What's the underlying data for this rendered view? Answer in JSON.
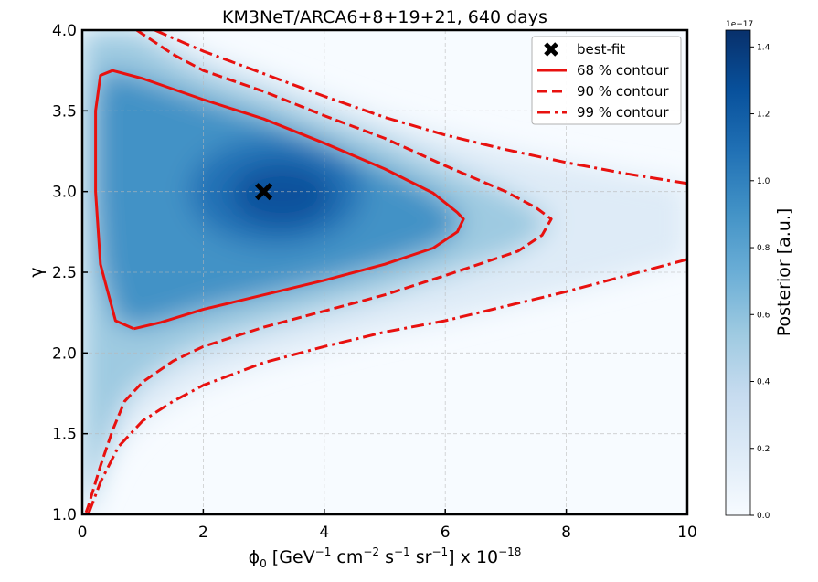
{
  "chart_data": {
    "type": "heatmap",
    "title": "KM3NeT/ARCA6+8+19+21, 640 days",
    "xlabel": {
      "main": "ϕ",
      "sub": "0",
      "body": " [GeV",
      "e1": "−1",
      "t1": " cm",
      "e2": "−2",
      "t2": " s",
      "e3": "−1",
      "t3": " sr",
      "e4": "−1",
      "t4": "] x 10",
      "e5": "−18"
    },
    "ylabel": "γ",
    "xlim": [
      0,
      10
    ],
    "ylim": [
      1.0,
      4.0
    ],
    "xticks": [
      "0",
      "2",
      "4",
      "6",
      "8",
      "10"
    ],
    "yticks": [
      "1.0",
      "1.5",
      "2.0",
      "2.5",
      "3.0",
      "3.5",
      "4.0"
    ],
    "grid": true,
    "best_fit": {
      "x": 3.0,
      "y": 3.0,
      "label": "best-fit"
    },
    "colorbar": {
      "label": "Posterior [a.u.]",
      "scale_label": "1e−17",
      "ticks": [
        "0.0",
        "0.2",
        "0.4",
        "0.6",
        "0.8",
        "1.0",
        "1.2",
        "1.4"
      ],
      "min": 0.0,
      "max": 1.45,
      "colormap": [
        "#f7fbff",
        "#deebf7",
        "#c6dbef",
        "#9ecae1",
        "#6baed6",
        "#4292c6",
        "#2171b5",
        "#08519c",
        "#08306b"
      ]
    },
    "contour_color": "#e8110f",
    "contours": [
      {
        "name": "68 % contour",
        "style": "solid",
        "points": [
          [
            0.85,
            2.15
          ],
          [
            0.55,
            2.2
          ],
          [
            0.3,
            2.55
          ],
          [
            0.22,
            3.0
          ],
          [
            0.22,
            3.5
          ],
          [
            0.3,
            3.72
          ],
          [
            0.5,
            3.75
          ],
          [
            1.0,
            3.7
          ],
          [
            2.0,
            3.57
          ],
          [
            3.0,
            3.45
          ],
          [
            4.0,
            3.3
          ],
          [
            5.0,
            3.14
          ],
          [
            5.8,
            2.99
          ],
          [
            6.2,
            2.87
          ],
          [
            6.3,
            2.83
          ],
          [
            6.2,
            2.75
          ],
          [
            5.8,
            2.65
          ],
          [
            5.0,
            2.55
          ],
          [
            4.0,
            2.45
          ],
          [
            3.0,
            2.36
          ],
          [
            2.0,
            2.27
          ],
          [
            1.3,
            2.19
          ],
          [
            0.85,
            2.15
          ]
        ]
      },
      {
        "name": "90 % contour",
        "style": "dashed",
        "groups": [
          [
            [
              0.9,
              4.0
            ],
            [
              1.5,
              3.85
            ],
            [
              2.0,
              3.75
            ],
            [
              3.0,
              3.62
            ],
            [
              4.0,
              3.47
            ],
            [
              5.0,
              3.33
            ],
            [
              6.0,
              3.16
            ],
            [
              7.0,
              3.0
            ],
            [
              7.5,
              2.9
            ],
            [
              7.75,
              2.83
            ],
            [
              7.6,
              2.73
            ],
            [
              7.2,
              2.63
            ],
            [
              6.0,
              2.48
            ],
            [
              5.0,
              2.36
            ],
            [
              4.0,
              2.26
            ],
            [
              3.0,
              2.16
            ],
            [
              2.0,
              2.04
            ],
            [
              1.5,
              1.95
            ],
            [
              1.0,
              1.82
            ],
            [
              0.7,
              1.7
            ],
            [
              0.5,
              1.52
            ],
            [
              0.3,
              1.3
            ],
            [
              0.1,
              1.05
            ],
            [
              0.05,
              1.0
            ]
          ]
        ]
      },
      {
        "name": "99 % contour",
        "style": "dashdot",
        "groups": [
          [
            [
              1.2,
              4.0
            ],
            [
              2.0,
              3.87
            ],
            [
              3.0,
              3.73
            ],
            [
              4.0,
              3.59
            ],
            [
              5.0,
              3.46
            ],
            [
              6.0,
              3.35
            ],
            [
              7.0,
              3.26
            ],
            [
              8.0,
              3.18
            ],
            [
              9.0,
              3.11
            ],
            [
              10.0,
              3.05
            ]
          ],
          [
            [
              10.0,
              2.58
            ],
            [
              9.0,
              2.48
            ],
            [
              8.0,
              2.38
            ],
            [
              7.0,
              2.29
            ],
            [
              6.0,
              2.2
            ],
            [
              5.0,
              2.13
            ],
            [
              4.0,
              2.04
            ],
            [
              3.0,
              1.94
            ],
            [
              2.0,
              1.8
            ],
            [
              1.5,
              1.7
            ],
            [
              1.0,
              1.58
            ],
            [
              0.6,
              1.42
            ],
            [
              0.3,
              1.2
            ],
            [
              0.1,
              1.0
            ]
          ]
        ]
      }
    ]
  }
}
